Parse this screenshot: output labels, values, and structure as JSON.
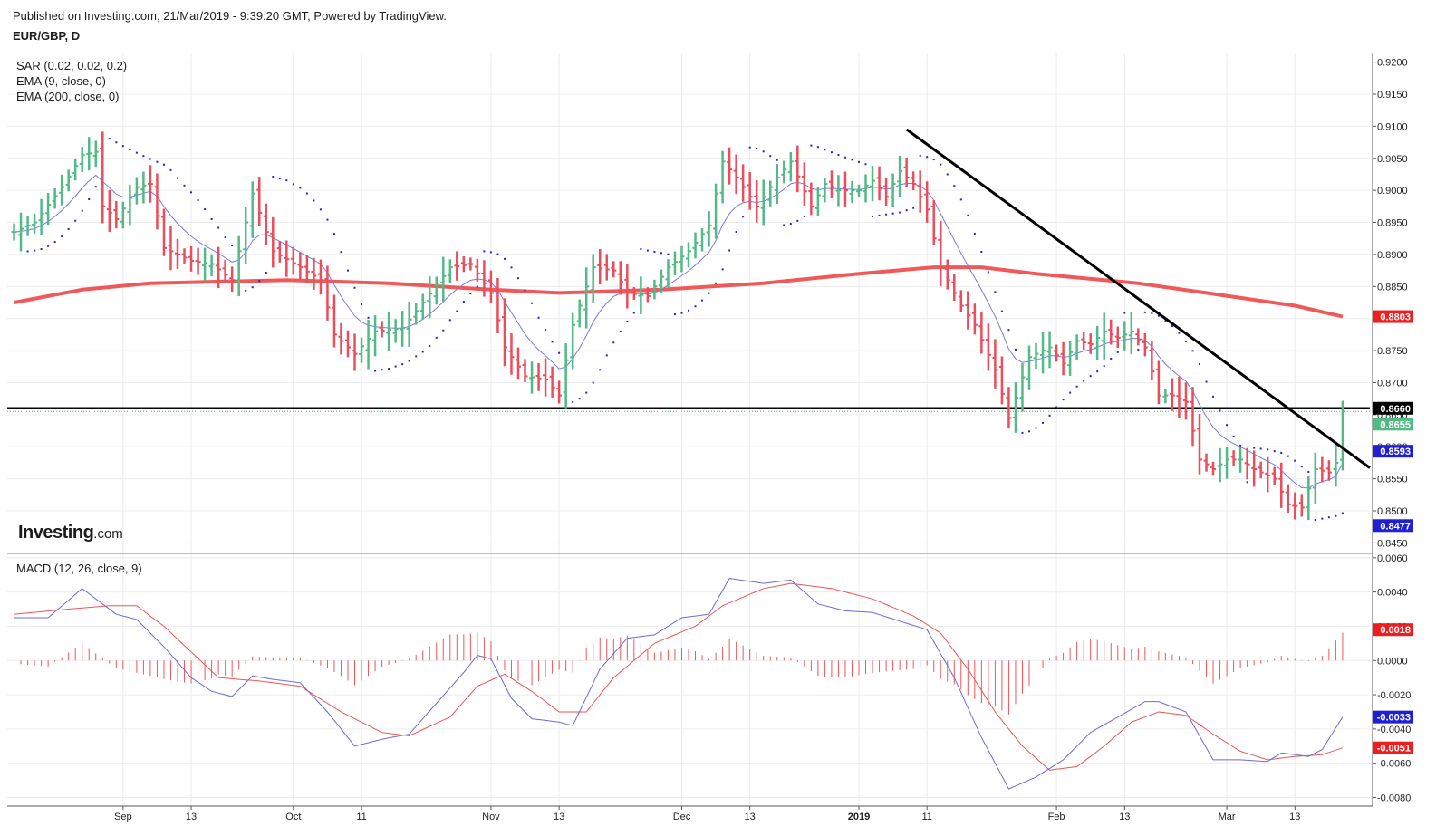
{
  "header": {
    "published": "Published on Investing.com, 21/Mar/2019 - 9:39:20 GMT, Powered by TradingView.",
    "symbol": "EUR/GBP, D"
  },
  "indicators": {
    "sar": "SAR (0.02, 0.02, 0.2)",
    "ema9": "EMA (9, close, 0)",
    "ema200": "EMA (200, close, 0)",
    "macd": "MACD (12, 26, close, 9)"
  },
  "logo": {
    "main": "Investing",
    "suffix": ".com"
  },
  "colors": {
    "up": "#53b987",
    "down": "#eb4d5c",
    "ema200": "#f0595a",
    "ema9": "#7b7bdc",
    "sar": "#2424c8",
    "macd": "#6b6bd6",
    "signal": "#ee5555",
    "hist": "#ee5555",
    "grid": "#ececec",
    "trend": "#000000",
    "label_blue": "#1f1fd6",
    "label_red": "#ee1e1e",
    "label_black": "#000000"
  },
  "chart_data": [
    {
      "type": "ohlc",
      "title": "EUR/GBP, D",
      "ylim": [
        0.8435,
        0.9215
      ],
      "yticks": [
        0.845,
        0.85,
        0.855,
        0.86,
        0.865,
        0.87,
        0.875,
        0.88,
        0.885,
        0.89,
        0.895,
        0.9,
        0.905,
        0.91,
        0.915,
        0.92
      ],
      "x_tick_labels": [
        {
          "i": 16,
          "label": "Sep"
        },
        {
          "i": 26,
          "label": "13"
        },
        {
          "i": 41,
          "label": "Oct"
        },
        {
          "i": 51,
          "label": "11"
        },
        {
          "i": 70,
          "label": "Nov"
        },
        {
          "i": 80,
          "label": "13"
        },
        {
          "i": 98,
          "label": "Dec"
        },
        {
          "i": 108,
          "label": "13"
        },
        {
          "i": 124,
          "label": "2019"
        },
        {
          "i": 134,
          "label": "11"
        },
        {
          "i": 153,
          "label": "Feb"
        },
        {
          "i": 163,
          "label": "13"
        },
        {
          "i": 178,
          "label": "Mar"
        },
        {
          "i": 188,
          "label": "13"
        }
      ],
      "x_domain": [
        -1,
        199
      ],
      "anchors": [
        [
          0,
          0.8935
        ],
        [
          3,
          0.895
        ],
        [
          7,
          0.9005
        ],
        [
          10,
          0.9055
        ],
        [
          12,
          0.906
        ],
        [
          13,
          0.8975
        ],
        [
          15,
          0.8955
        ],
        [
          18,
          0.9005
        ],
        [
          20,
          0.901
        ],
        [
          22,
          0.891
        ],
        [
          26,
          0.889
        ],
        [
          29,
          0.8885
        ],
        [
          32,
          0.886
        ],
        [
          35,
          0.8995
        ],
        [
          38,
          0.8905
        ],
        [
          42,
          0.888
        ],
        [
          45,
          0.886
        ],
        [
          47,
          0.8775
        ],
        [
          50,
          0.8745
        ],
        [
          53,
          0.878
        ],
        [
          57,
          0.8785
        ],
        [
          60,
          0.8825
        ],
        [
          64,
          0.888
        ],
        [
          67,
          0.8885
        ],
        [
          70,
          0.884
        ],
        [
          72,
          0.8755
        ],
        [
          75,
          0.871
        ],
        [
          78,
          0.8705
        ],
        [
          80,
          0.868
        ],
        [
          82,
          0.879
        ],
        [
          85,
          0.888
        ],
        [
          88,
          0.8875
        ],
        [
          90,
          0.884
        ],
        [
          93,
          0.8835
        ],
        [
          96,
          0.888
        ],
        [
          99,
          0.8905
        ],
        [
          102,
          0.8945
        ],
        [
          104,
          0.9045
        ],
        [
          106,
          0.902
        ],
        [
          109,
          0.8975
        ],
        [
          112,
          0.902
        ],
        [
          114,
          0.9045
        ],
        [
          117,
          0.8975
        ],
        [
          119,
          0.901
        ],
        [
          121,
          0.9
        ],
        [
          124,
          0.9
        ],
        [
          126,
          0.9015
        ],
        [
          128,
          0.899
        ],
        [
          130,
          0.903
        ],
        [
          132,
          0.901
        ],
        [
          134,
          0.897
        ],
        [
          136,
          0.888
        ],
        [
          139,
          0.882
        ],
        [
          141,
          0.879
        ],
        [
          144,
          0.872
        ],
        [
          146,
          0.8645
        ],
        [
          149,
          0.874
        ],
        [
          152,
          0.8755
        ],
        [
          154,
          0.873
        ],
        [
          156,
          0.8765
        ],
        [
          158,
          0.876
        ],
        [
          160,
          0.878
        ],
        [
          162,
          0.877
        ],
        [
          164,
          0.878
        ],
        [
          166,
          0.8755
        ],
        [
          168,
          0.868
        ],
        [
          170,
          0.868
        ],
        [
          172,
          0.867
        ],
        [
          174,
          0.858
        ],
        [
          176,
          0.8565
        ],
        [
          178,
          0.858
        ],
        [
          180,
          0.858
        ],
        [
          182,
          0.8565
        ],
        [
          185,
          0.855
        ],
        [
          187,
          0.851
        ],
        [
          189,
          0.8505
        ],
        [
          191,
          0.8565
        ],
        [
          193,
          0.856
        ],
        [
          194,
          0.8575
        ],
        [
          195,
          0.8655
        ]
      ],
      "h_line": 0.866,
      "trendline": [
        [
          131,
          0.9095
        ],
        [
          199,
          0.8567
        ]
      ],
      "ema200_points": [
        [
          0,
          0.8825
        ],
        [
          10,
          0.8845
        ],
        [
          20,
          0.8855
        ],
        [
          40,
          0.886
        ],
        [
          55,
          0.8855
        ],
        [
          70,
          0.8845
        ],
        [
          80,
          0.884
        ],
        [
          95,
          0.8845
        ],
        [
          110,
          0.8855
        ],
        [
          124,
          0.887
        ],
        [
          135,
          0.888
        ],
        [
          142,
          0.888
        ],
        [
          150,
          0.887
        ],
        [
          165,
          0.8855
        ],
        [
          175,
          0.884
        ],
        [
          188,
          0.882
        ],
        [
          195,
          0.8803
        ]
      ],
      "price_labels": [
        {
          "value": 0.8803,
          "text": "0.8803",
          "bg": "#ee1e1e"
        },
        {
          "value": 0.866,
          "text": "0.8660",
          "bg": "#000000"
        },
        {
          "value": 0.8655,
          "text": "0.8655",
          "bg": "#53b987"
        },
        {
          "value": 0.8593,
          "text": "0.8593",
          "bg": "#1f1fd6"
        },
        {
          "value": 0.8477,
          "text": "0.8477",
          "bg": "#1f1fd6"
        }
      ],
      "series": [
        {
          "name": "SAR (0.02, 0.02, 0.2)"
        },
        {
          "name": "EMA (9, close, 0)"
        },
        {
          "name": "EMA (200, close, 0)"
        }
      ]
    },
    {
      "type": "line",
      "title": "MACD (12, 26, close, 9)",
      "ylim": [
        -0.0085,
        0.0062
      ],
      "yticks": [
        -0.008,
        -0.006,
        -0.004,
        -0.002,
        0.0,
        0.002,
        0.004,
        0.006
      ],
      "macd_anchors": [
        [
          0,
          0.0025
        ],
        [
          5,
          0.0025
        ],
        [
          10,
          0.0042
        ],
        [
          15,
          0.0027
        ],
        [
          18,
          0.0024
        ],
        [
          22,
          0.0008
        ],
        [
          26,
          -0.001
        ],
        [
          29,
          -0.0018
        ],
        [
          32,
          -0.0021
        ],
        [
          35,
          -0.0009
        ],
        [
          38,
          -0.0011
        ],
        [
          42,
          -0.0013
        ],
        [
          46,
          -0.003
        ],
        [
          50,
          -0.005
        ],
        [
          54,
          -0.0046
        ],
        [
          58,
          -0.0043
        ],
        [
          62,
          -0.0025
        ],
        [
          66,
          -0.0007
        ],
        [
          68,
          0.0003
        ],
        [
          70,
          0.0001
        ],
        [
          73,
          -0.0022
        ],
        [
          76,
          -0.0034
        ],
        [
          80,
          -0.0036
        ],
        [
          82,
          -0.0038
        ],
        [
          86,
          -0.0005
        ],
        [
          90,
          0.0013
        ],
        [
          94,
          0.0015
        ],
        [
          98,
          0.0025
        ],
        [
          102,
          0.0027
        ],
        [
          105,
          0.0048
        ],
        [
          110,
          0.0045
        ],
        [
          114,
          0.0047
        ],
        [
          118,
          0.0033
        ],
        [
          122,
          0.0029
        ],
        [
          126,
          0.0028
        ],
        [
          130,
          0.0023
        ],
        [
          134,
          0.0018
        ],
        [
          138,
          -0.001
        ],
        [
          142,
          -0.0045
        ],
        [
          146,
          -0.0075
        ],
        [
          150,
          -0.0068
        ],
        [
          154,
          -0.0058
        ],
        [
          158,
          -0.0042
        ],
        [
          162,
          -0.0033
        ],
        [
          166,
          -0.0024
        ],
        [
          168,
          -0.0024
        ],
        [
          172,
          -0.003
        ],
        [
          176,
          -0.0058
        ],
        [
          180,
          -0.0058
        ],
        [
          184,
          -0.0059
        ],
        [
          186,
          -0.0054
        ],
        [
          190,
          -0.0056
        ],
        [
          192,
          -0.0052
        ],
        [
          195,
          -0.0033
        ]
      ],
      "signal_anchors": [
        [
          0,
          0.0027
        ],
        [
          8,
          0.003
        ],
        [
          14,
          0.0032
        ],
        [
          18,
          0.0032
        ],
        [
          22,
          0.002
        ],
        [
          26,
          0.0005
        ],
        [
          30,
          -0.001
        ],
        [
          36,
          -0.0012
        ],
        [
          42,
          -0.0015
        ],
        [
          48,
          -0.003
        ],
        [
          54,
          -0.0042
        ],
        [
          58,
          -0.0044
        ],
        [
          64,
          -0.0033
        ],
        [
          68,
          -0.0015
        ],
        [
          72,
          -0.0008
        ],
        [
          76,
          -0.0018
        ],
        [
          80,
          -0.003
        ],
        [
          84,
          -0.003
        ],
        [
          88,
          -0.001
        ],
        [
          94,
          0.001
        ],
        [
          100,
          0.002
        ],
        [
          104,
          0.0032
        ],
        [
          110,
          0.0042
        ],
        [
          114,
          0.0045
        ],
        [
          120,
          0.0042
        ],
        [
          126,
          0.0036
        ],
        [
          132,
          0.0026
        ],
        [
          136,
          0.0016
        ],
        [
          140,
          -0.0005
        ],
        [
          144,
          -0.003
        ],
        [
          148,
          -0.005
        ],
        [
          152,
          -0.0064
        ],
        [
          156,
          -0.0062
        ],
        [
          160,
          -0.005
        ],
        [
          164,
          -0.0036
        ],
        [
          168,
          -0.003
        ],
        [
          172,
          -0.0032
        ],
        [
          176,
          -0.0043
        ],
        [
          180,
          -0.0053
        ],
        [
          184,
          -0.0058
        ],
        [
          188,
          -0.0056
        ],
        [
          192,
          -0.0055
        ],
        [
          195,
          -0.0051
        ]
      ],
      "price_labels": [
        {
          "value": 0.0018,
          "text": "0.0018",
          "bg": "#ee1e1e"
        },
        {
          "value": -0.0033,
          "text": "-0.0033",
          "bg": "#1f1fd6"
        },
        {
          "value": -0.0051,
          "text": "-0.0051",
          "bg": "#ee1e1e"
        }
      ],
      "series": [
        {
          "name": "MACD"
        },
        {
          "name": "Signal"
        },
        {
          "name": "Histogram"
        }
      ]
    }
  ]
}
